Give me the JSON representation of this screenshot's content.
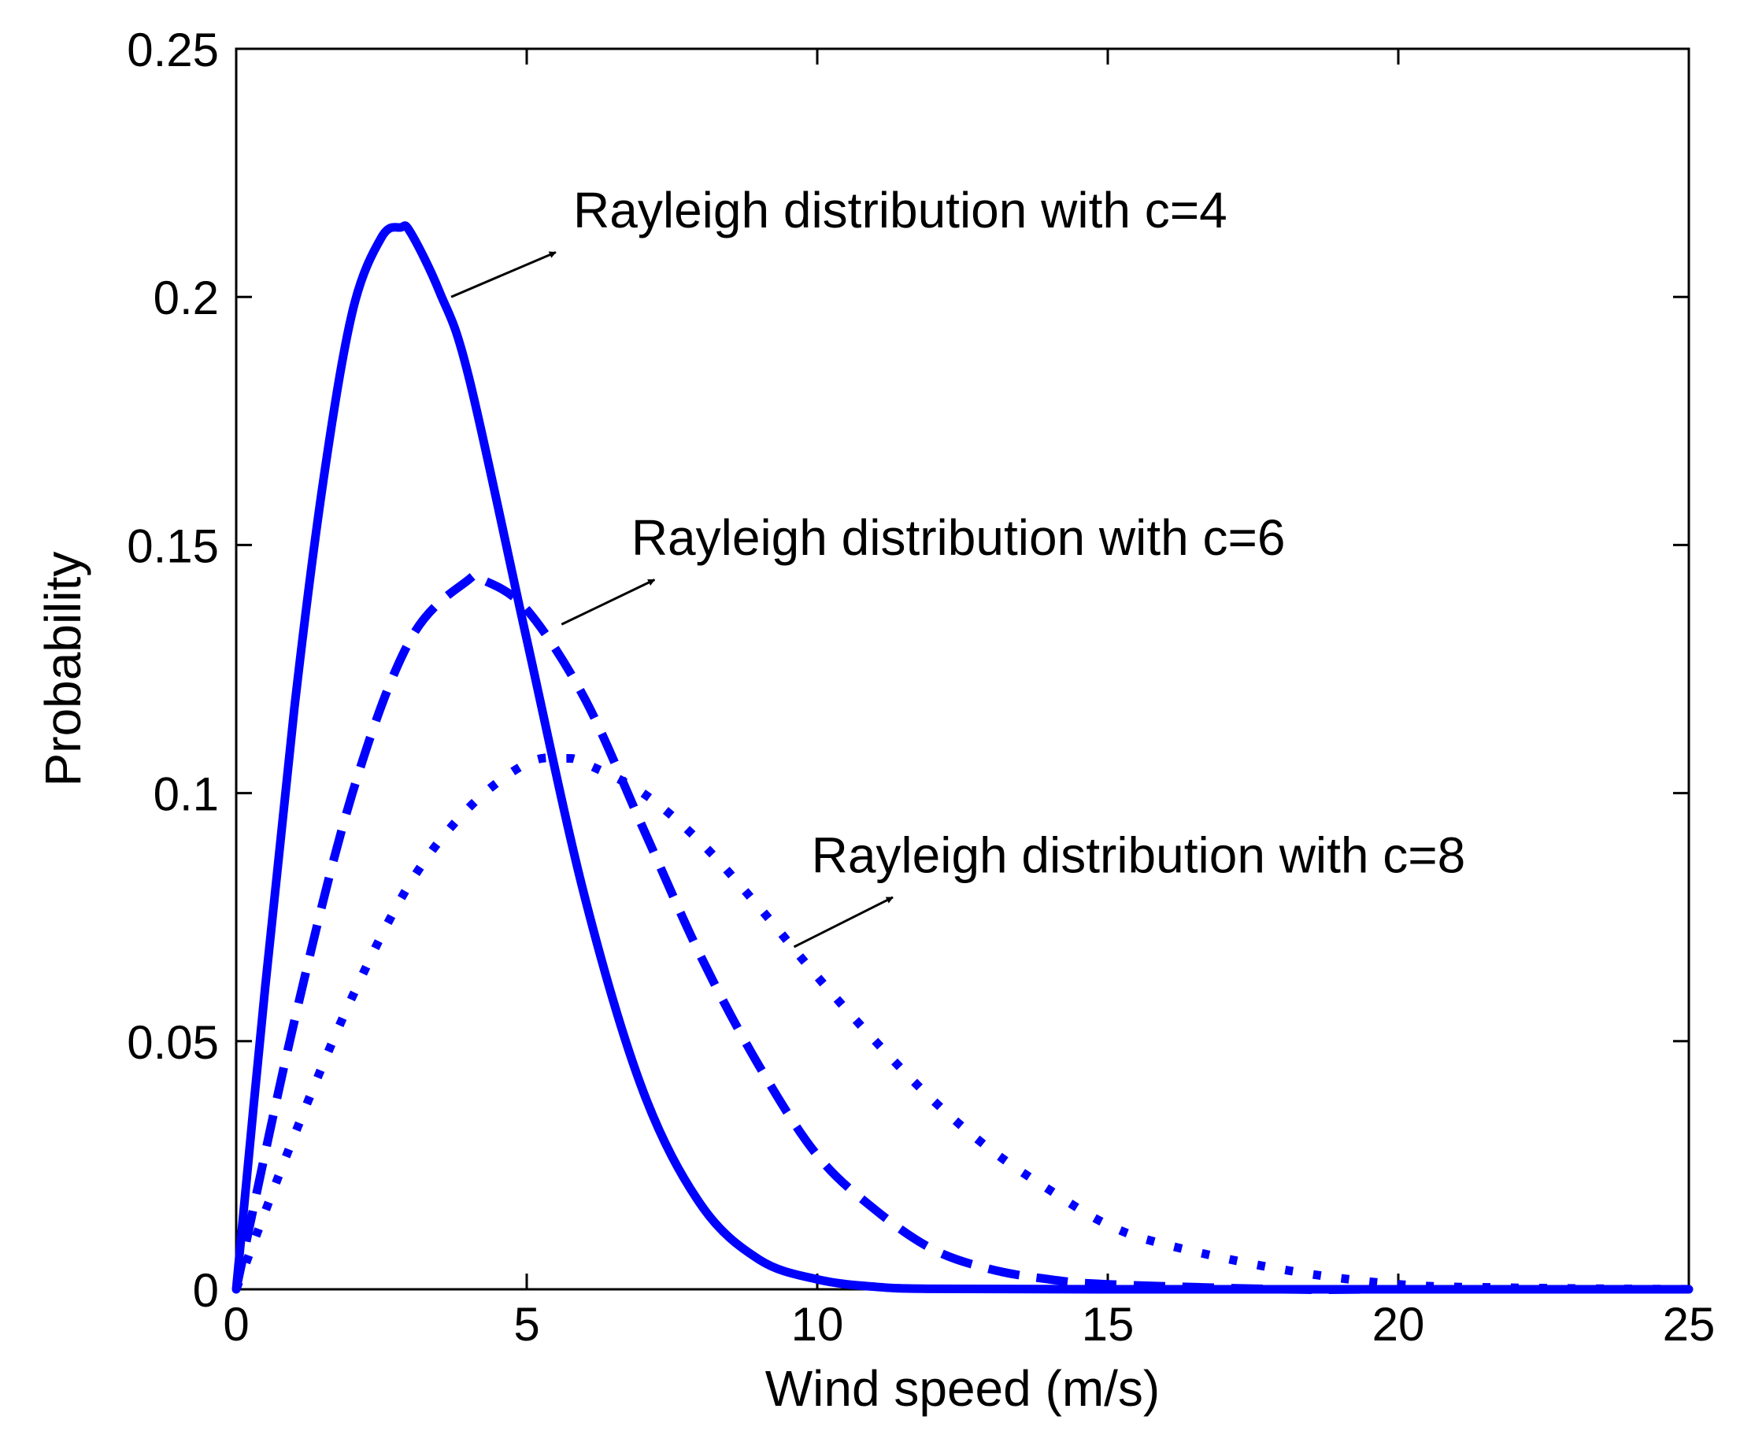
{
  "chart_data": {
    "type": "line",
    "title": "",
    "xlabel": "Wind speed (m/s)",
    "ylabel": "Probability",
    "xlim": [
      0,
      25
    ],
    "ylim": [
      0,
      0.25
    ],
    "xticks": [
      0,
      5,
      10,
      15,
      20,
      25
    ],
    "yticks": [
      0,
      0.05,
      0.1,
      0.15,
      0.2,
      0.25
    ],
    "xtick_labels": [
      "0",
      "5",
      "10",
      "15",
      "20",
      "25"
    ],
    "ytick_labels": [
      "0",
      "0.05",
      "0.1",
      "0.15",
      "0.2",
      "0.25"
    ],
    "grid": false,
    "line_color": "#0000ff",
    "series": [
      {
        "name": "Rayleigh distribution with c=4",
        "c": 4,
        "style": "solid",
        "x": [
          0,
          0.5,
          1,
          1.5,
          2,
          2.5,
          2.83,
          3,
          3.5,
          4,
          5,
          6,
          7,
          8,
          9,
          10,
          11,
          12,
          15,
          20,
          25
        ],
        "y": [
          0,
          0.061,
          0.117,
          0.163,
          0.197,
          0.212,
          0.214,
          0.213,
          0.201,
          0.184,
          0.131,
          0.079,
          0.04,
          0.017,
          0.006,
          0.002,
          0.0005,
          0.0001,
          0,
          0,
          0
        ]
      },
      {
        "name": "Rayleigh distribution with c=6",
        "c": 6,
        "style": "dashed",
        "x": [
          0,
          1,
          2,
          3,
          4,
          4.24,
          5,
          6,
          7,
          8,
          9,
          10,
          11,
          12,
          13,
          14,
          15,
          18,
          20,
          25
        ],
        "y": [
          0,
          0.054,
          0.1,
          0.131,
          0.143,
          0.143,
          0.137,
          0.119,
          0.093,
          0.067,
          0.045,
          0.027,
          0.016,
          0.008,
          0.004,
          0.002,
          0.001,
          0,
          0,
          0
        ]
      },
      {
        "name": "Rayleigh distribution with c=8",
        "c": 8,
        "style": "dotted",
        "x": [
          0,
          1,
          2,
          3,
          4,
          5,
          5.66,
          6,
          7,
          8,
          9,
          10,
          11,
          12,
          13,
          14,
          15,
          16,
          18,
          20,
          22,
          25
        ],
        "y": [
          0,
          0.031,
          0.059,
          0.082,
          0.097,
          0.106,
          0.107,
          0.106,
          0.1,
          0.09,
          0.077,
          0.063,
          0.05,
          0.038,
          0.028,
          0.02,
          0.013,
          0.009,
          0.004,
          0.001,
          0.0003,
          0
        ]
      }
    ],
    "annotations": [
      {
        "text": "Rayleigh distribution with c=4",
        "series_index": 0,
        "text_at": [
          5.8,
          0.214
        ],
        "arrow_from": [
          3.7,
          0.2
        ],
        "arrow_to": [
          5.5,
          0.209
        ]
      },
      {
        "text": "Rayleigh distribution with c=6",
        "series_index": 1,
        "text_at": [
          6.8,
          0.148
        ],
        "arrow_from": [
          5.6,
          0.134
        ],
        "arrow_to": [
          7.2,
          0.143
        ]
      },
      {
        "text": "Rayleigh distribution with c=8",
        "series_index": 2,
        "text_at": [
          9.9,
          0.084
        ],
        "arrow_from": [
          9.6,
          0.069
        ],
        "arrow_to": [
          11.3,
          0.079
        ]
      }
    ]
  }
}
